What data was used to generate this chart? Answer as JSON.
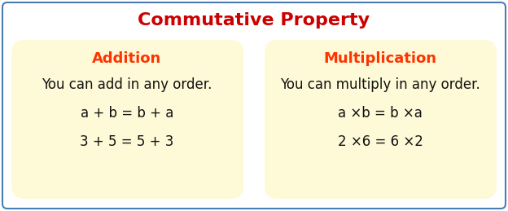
{
  "title": "Commutative Property",
  "title_color": "#cc0000",
  "title_fontsize": 16,
  "bg_color": "#ffffff",
  "border_color": "#4a7db5",
  "box_bg_color": "#fef9d7",
  "box_border_color": "#e8d890",
  "left_heading": "Addition",
  "right_heading": "Multiplication",
  "heading_color": "#ff3300",
  "heading_fontsize": 13,
  "left_lines": [
    "You can add in any order.",
    "a + b = b + a",
    "3 + 5 = 5 + 3"
  ],
  "right_lines": [
    "You can multiply in any order.",
    "a ×b = b ×a",
    "2 ×6 = 6 ×2"
  ],
  "body_color": "#111111",
  "body_fontsize": 12
}
